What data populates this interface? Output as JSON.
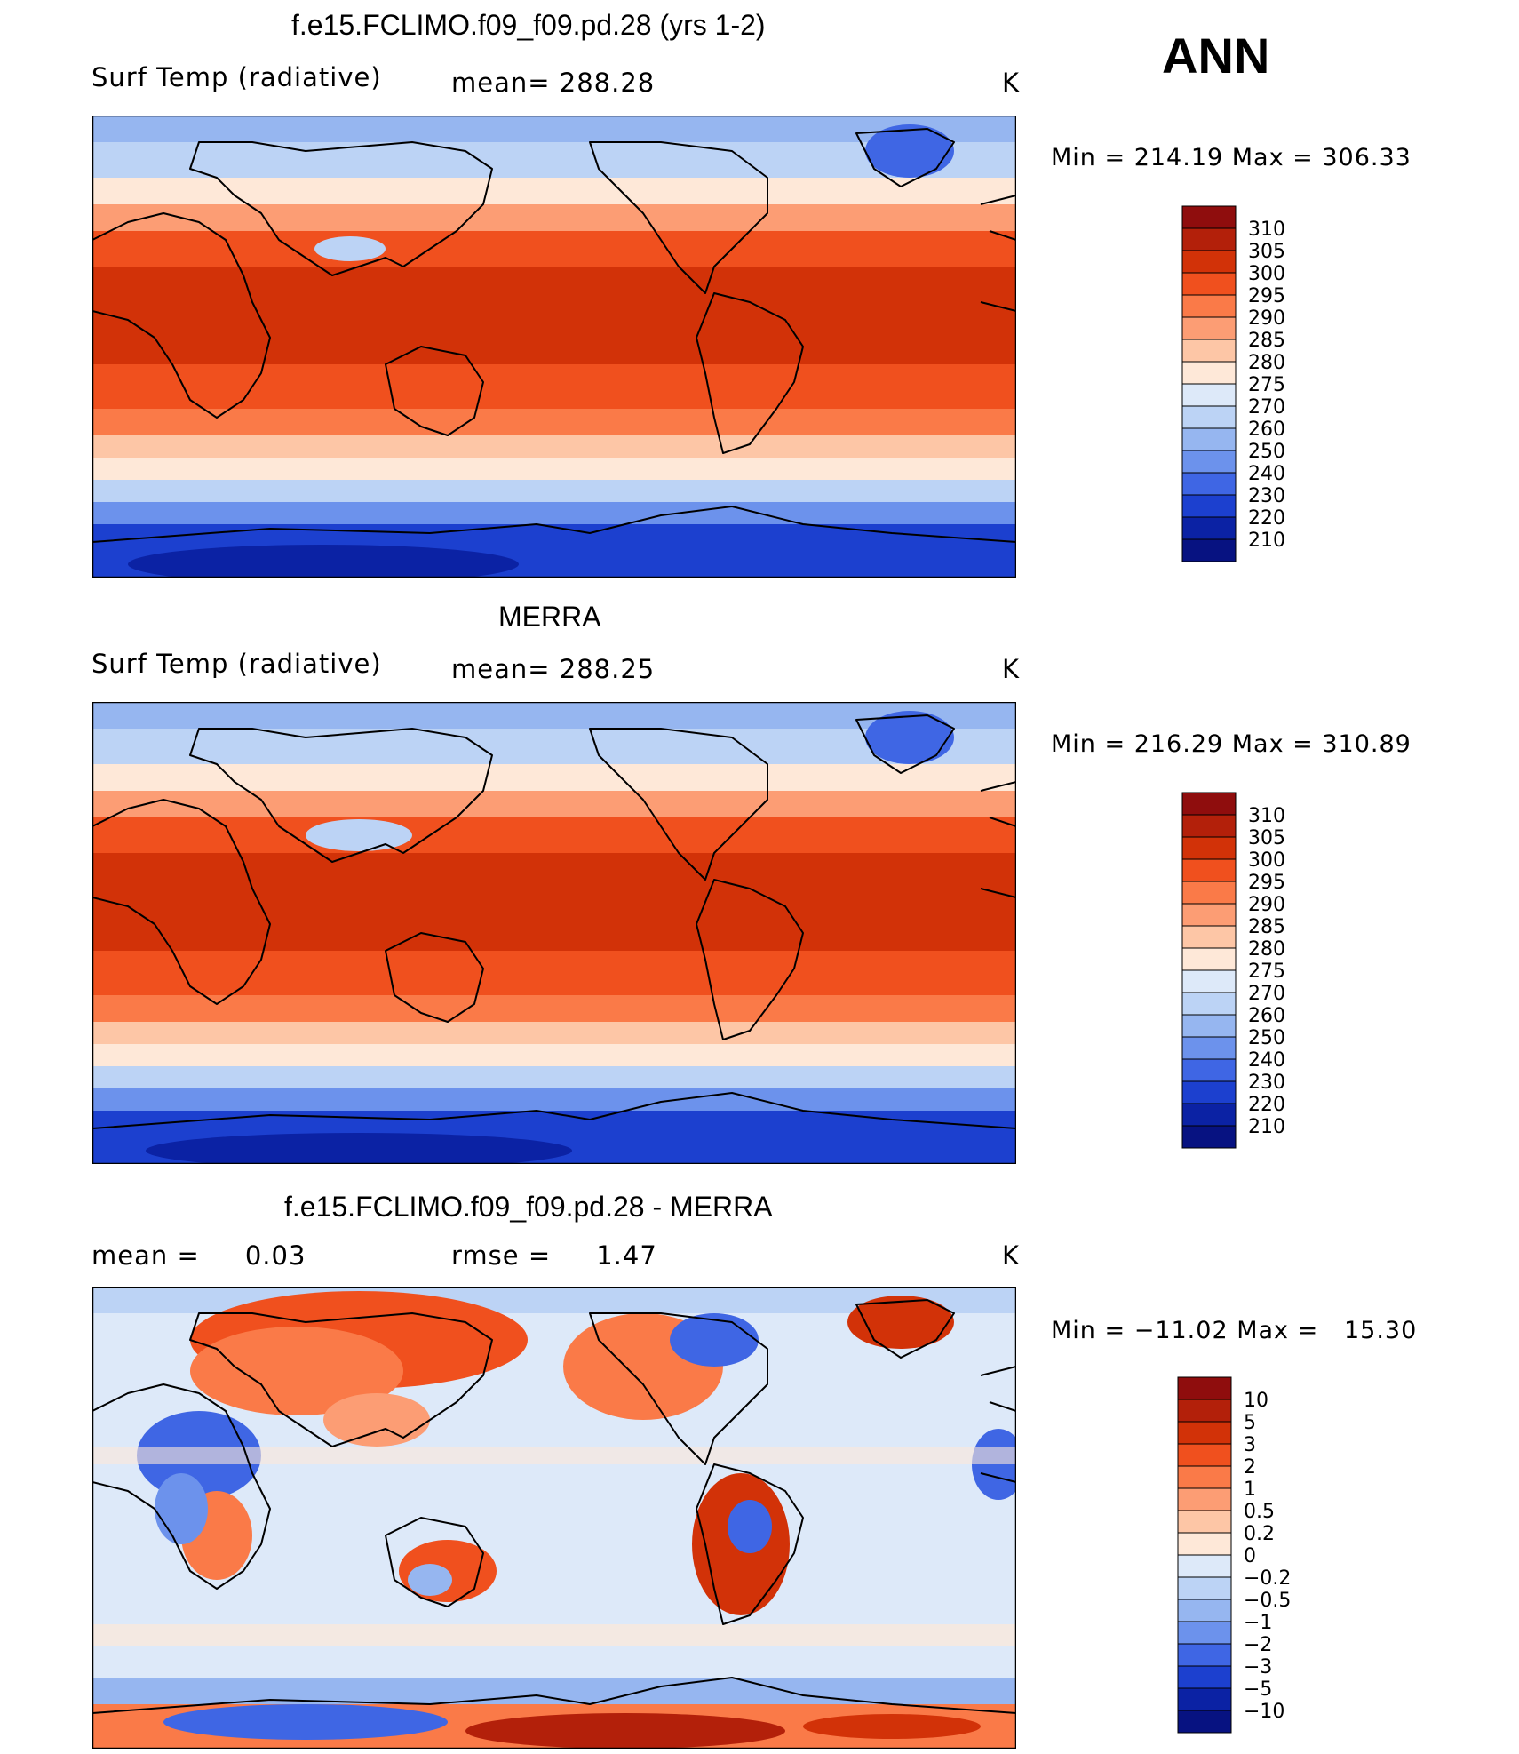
{
  "season": "ANN",
  "panels": [
    {
      "id": "model",
      "title": "f.e15.FCLIMO.f09_f09.pd.28 (yrs 1-2)",
      "left_label": "Surf Temp (radiative)",
      "center_label": "mean= 288.28",
      "units": "K",
      "minmax": "Min = 214.19 Max = 306.33",
      "colorbar_levels": [
        "310",
        "305",
        "300",
        "295",
        "290",
        "285",
        "280",
        "275",
        "270",
        "260",
        "250",
        "240",
        "230",
        "220",
        "210"
      ]
    },
    {
      "id": "obs",
      "title": "MERRA",
      "left_label": "Surf Temp (radiative)",
      "center_label": "mean= 288.25",
      "units": "K",
      "minmax": "Min = 216.29 Max = 310.89",
      "colorbar_levels": [
        "310",
        "305",
        "300",
        "295",
        "290",
        "285",
        "280",
        "275",
        "270",
        "260",
        "250",
        "240",
        "230",
        "220",
        "210"
      ]
    },
    {
      "id": "diff",
      "title": "f.e15.FCLIMO.f09_f09.pd.28 - MERRA",
      "left_label": "mean =     0.03",
      "center_label": "rmse =     1.47",
      "units": "K",
      "minmax": "Min = −11.02 Max =   15.30",
      "colorbar_levels": [
        "10",
        "5",
        "3",
        "2",
        "1",
        "0.5",
        "0.2",
        "0",
        "−0.2",
        "−0.5",
        "−1",
        "−2",
        "−3",
        "−5",
        "−10"
      ]
    }
  ],
  "colors": {
    "abs_palette": [
      "#8f0d0d",
      "#b3200a",
      "#d23208",
      "#f0501e",
      "#fa7a48",
      "#fc9d74",
      "#fdc6a6",
      "#fee8d8",
      "#dde9f9",
      "#bcd3f5",
      "#96b6f0",
      "#6c92ec",
      "#3f66e4",
      "#1c40cf",
      "#0b22a4",
      "#071281"
    ],
    "diff_palette": [
      "#8f0d0d",
      "#b3200a",
      "#d23208",
      "#f0501e",
      "#fa7a48",
      "#fc9d74",
      "#fdc6a6",
      "#fee8d8",
      "#dde9f9",
      "#bcd3f5",
      "#96b6f0",
      "#6c92ec",
      "#3f66e4",
      "#1c40cf",
      "#0b22a4",
      "#071281"
    ]
  }
}
